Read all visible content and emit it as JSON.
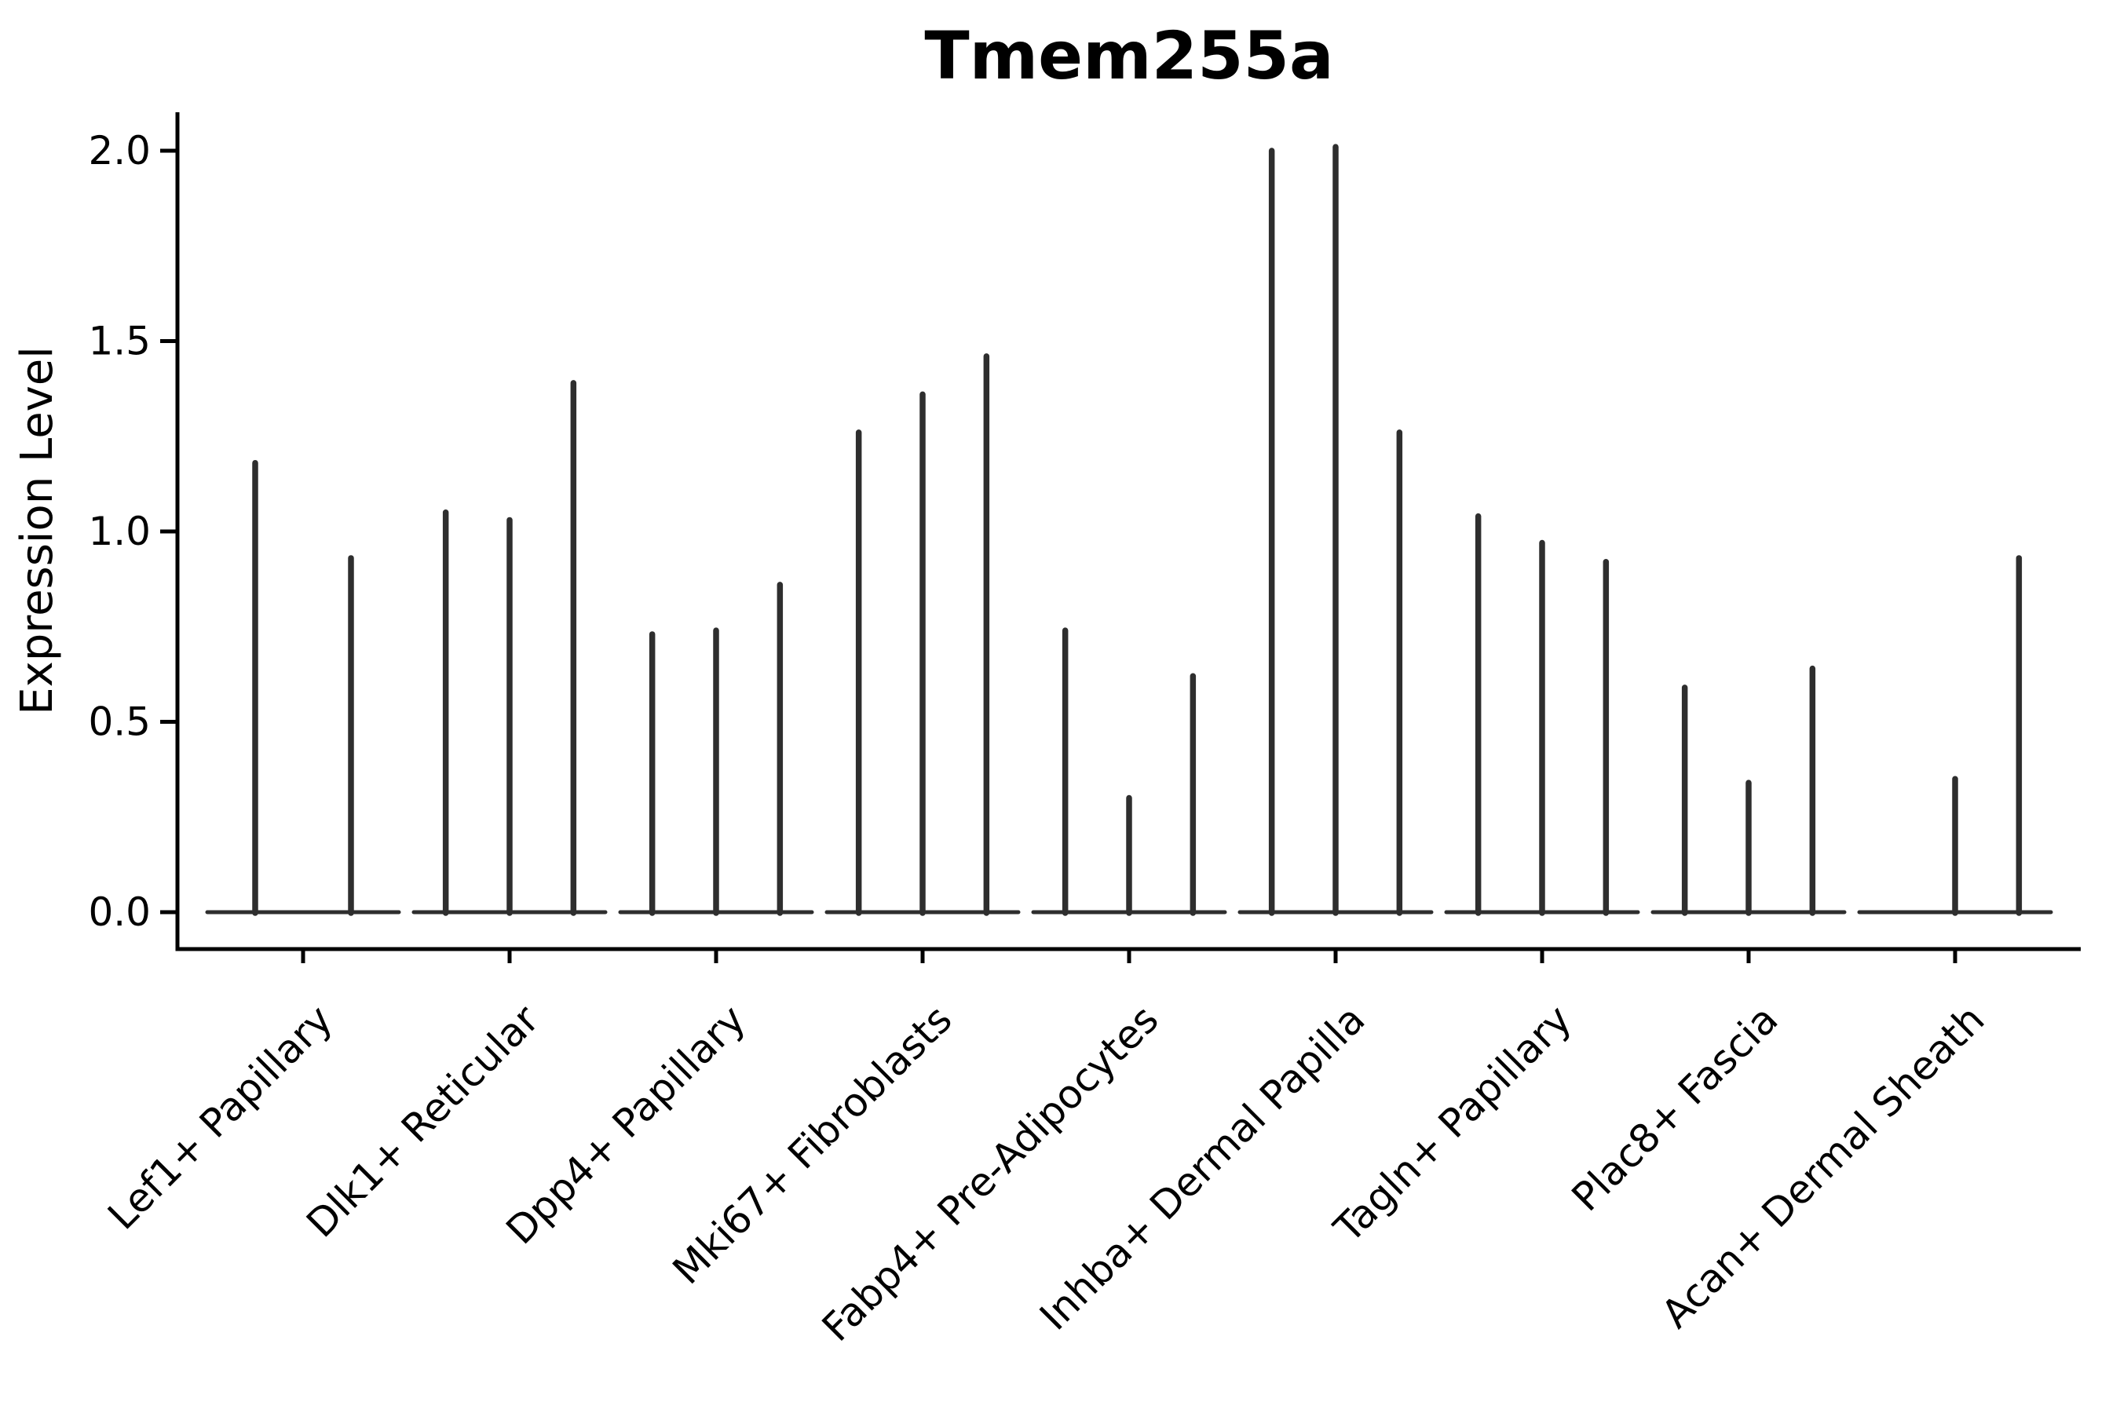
{
  "title": "Tmem255a",
  "y_axis": {
    "label": "Expression Level",
    "tick_labels": [
      "0.0",
      "0.5",
      "1.0",
      "1.5",
      "2.0"
    ]
  },
  "colors": {
    "violin": "#2e2e2e",
    "axis": "#000000",
    "background": "#ffffff"
  },
  "chart_data": {
    "type": "violin",
    "title": "Tmem255a",
    "xlabel": "",
    "ylabel": "Expression Level",
    "ylim": [
      0,
      2.1
    ],
    "yticks": [
      0,
      0.5,
      1,
      1.5,
      2
    ],
    "ytick_labels": [
      "0.0",
      "0.5",
      "1.0",
      "1.5",
      "2.0"
    ],
    "grid": false,
    "legend": null,
    "description": "Needle-shaped violins: expression concentrated at 0 (wide flat base at y=0) with a thin spike reaching the maximum expression value; each category contains 2-3 violins; a max of 0 means a collapsed violin with no spike.",
    "categories": [
      "Lef1+ Papillary",
      "Dlk1+ Reticular",
      "Dpp4+ Papillary",
      "Mki67+ Fibroblasts",
      "Fabp4+ Pre-Adipocytes",
      "Inhba+ Dermal Papilla",
      "Tagln+ Papillary",
      "Plac8+ Fascia",
      "Acan+ Dermal Sheath"
    ],
    "groups": [
      {
        "category": "Lef1+ Papillary",
        "violin_max_values": [
          1.18,
          0.93
        ]
      },
      {
        "category": "Dlk1+ Reticular",
        "violin_max_values": [
          1.05,
          1.03,
          1.39
        ]
      },
      {
        "category": "Dpp4+ Papillary",
        "violin_max_values": [
          0.73,
          0.74,
          0.86
        ]
      },
      {
        "category": "Mki67+ Fibroblasts",
        "violin_max_values": [
          1.26,
          1.36,
          1.46
        ]
      },
      {
        "category": "Fabp4+ Pre-Adipocytes",
        "violin_max_values": [
          0.74,
          0.3,
          0.62
        ]
      },
      {
        "category": "Inhba+ Dermal Papilla",
        "violin_max_values": [
          2.0,
          2.01,
          1.26
        ]
      },
      {
        "category": "Tagln+ Papillary",
        "violin_max_values": [
          1.04,
          0.97,
          0.92
        ]
      },
      {
        "category": "Plac8+ Fascia",
        "violin_max_values": [
          0.59,
          0.34,
          0.64
        ]
      },
      {
        "category": "Acan+ Dermal Sheath",
        "violin_max_values": [
          0.0,
          0.35,
          0.93
        ]
      }
    ]
  }
}
